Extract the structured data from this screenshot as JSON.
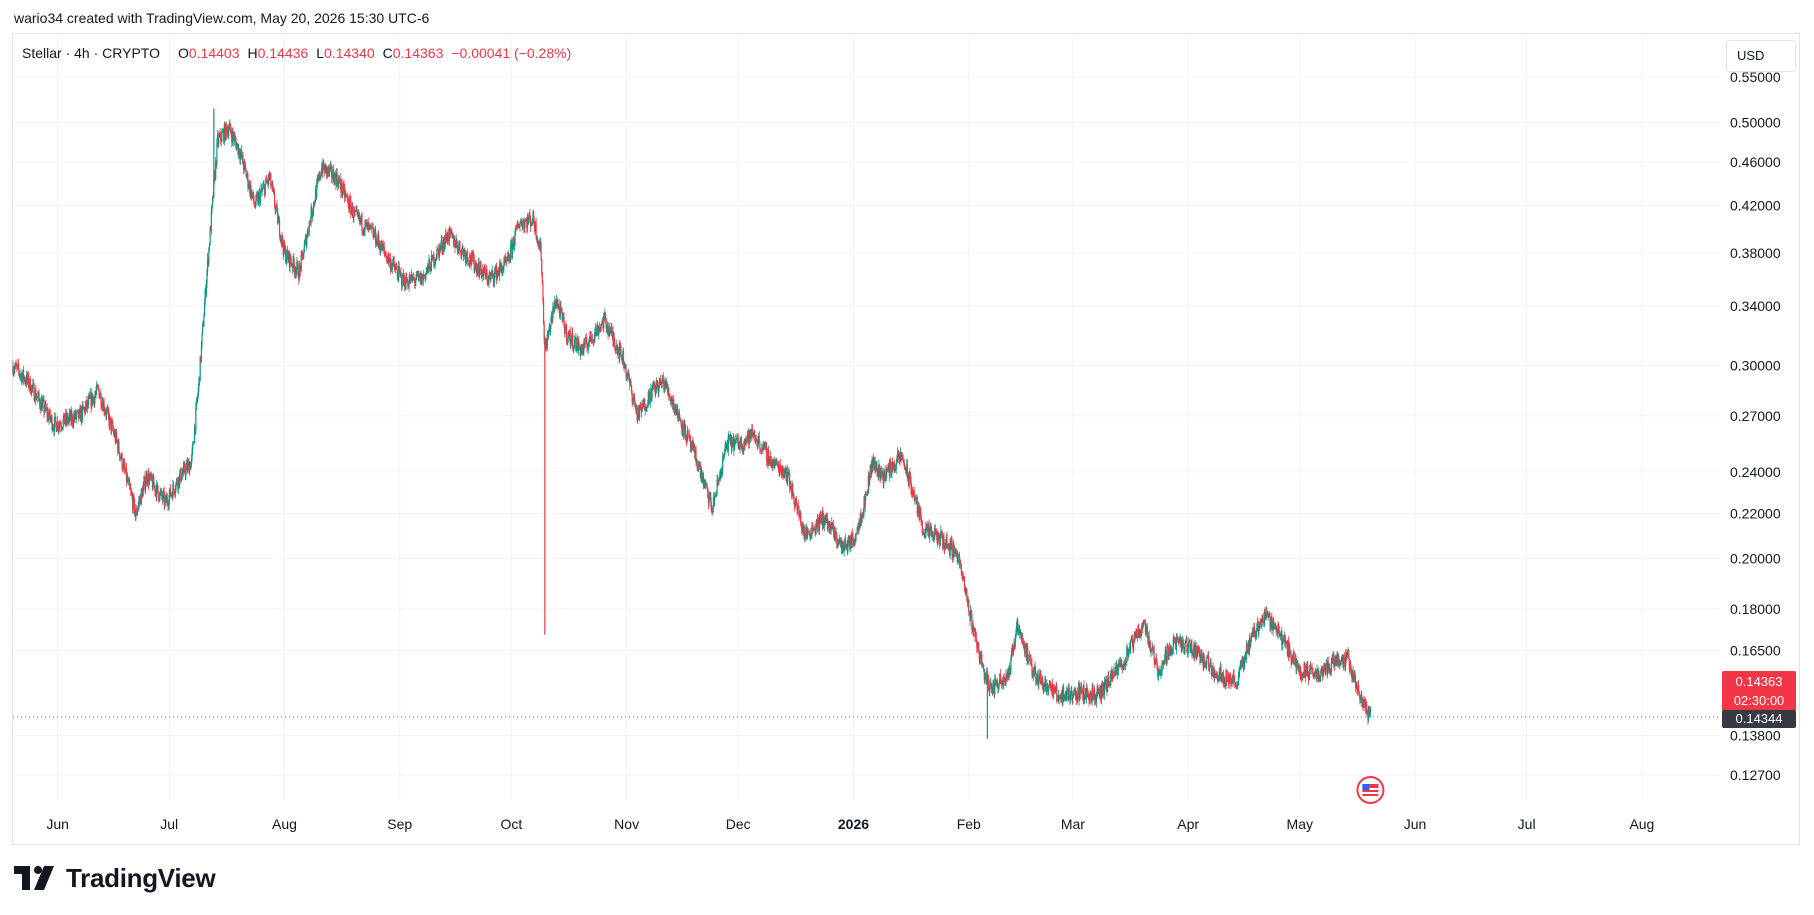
{
  "caption": "wario34 created with TradingView.com, May 20, 2026 15:30 UTC-6",
  "brand": {
    "name": "TradingView",
    "logo_icon": "tradingview-logo-icon"
  },
  "legend": {
    "symbol": "Stellar · 4h · CRYPTO",
    "open_label": "O",
    "open": "0.14403",
    "high_label": "H",
    "high": "0.14436",
    "low_label": "L",
    "low": "0.14340",
    "close_label": "C",
    "close": "0.14363",
    "change": "−0.00041 (−0.28%)"
  },
  "currency": "USD",
  "price_tag": {
    "value": "0.14363",
    "countdown": "02:30:00",
    "color": "#f23645"
  },
  "ref_tag": {
    "value": "0.14344",
    "color": "#363a45"
  },
  "colors": {
    "up": "#089981",
    "down": "#f23645",
    "grid": "#f0f3fa",
    "text": "#131722"
  },
  "event_icon": "us-flag-economic-event-icon",
  "chart_data": {
    "type": "candlestick",
    "interval": "4h",
    "y_scale": "log",
    "ylim": [
      0.1205,
      0.5652
    ],
    "y_ticks": [
      "0.55000",
      "0.50000",
      "0.46000",
      "0.42000",
      "0.38000",
      "0.34000",
      "0.30000",
      "0.27000",
      "0.24000",
      "0.22000",
      "0.20000",
      "0.18000",
      "0.16500",
      "0.13800",
      "0.12700"
    ],
    "x_ticks": [
      "Jun",
      "Jul",
      "Aug",
      "Sep",
      "Oct",
      "Nov",
      "Dec",
      "2026",
      "Feb",
      "Mar",
      "Apr",
      "May",
      "Jun",
      "Jul",
      "Aug"
    ],
    "x_range": [
      "2025-05-20",
      "2026-08-22"
    ],
    "path": [
      [
        "2025-05-20",
        0.3
      ],
      [
        "2025-05-24",
        0.29
      ],
      [
        "2025-05-31",
        0.265
      ],
      [
        "2025-06-07",
        0.27
      ],
      [
        "2025-06-12",
        0.285
      ],
      [
        "2025-06-17",
        0.255
      ],
      [
        "2025-06-22",
        0.22
      ],
      [
        "2025-06-25",
        0.238
      ],
      [
        "2025-06-30",
        0.225
      ],
      [
        "2025-07-04",
        0.238
      ],
      [
        "2025-07-07",
        0.245
      ],
      [
        "2025-07-09",
        0.29
      ],
      [
        "2025-07-11",
        0.36
      ],
      [
        "2025-07-14",
        0.48
      ],
      [
        "2025-07-17",
        0.495
      ],
      [
        "2025-07-20",
        0.47
      ],
      [
        "2025-07-24",
        0.42
      ],
      [
        "2025-07-28",
        0.445
      ],
      [
        "2025-08-01",
        0.38
      ],
      [
        "2025-08-05",
        0.365
      ],
      [
        "2025-08-08",
        0.41
      ],
      [
        "2025-08-11",
        0.455
      ],
      [
        "2025-08-15",
        0.445
      ],
      [
        "2025-08-20",
        0.41
      ],
      [
        "2025-08-25",
        0.395
      ],
      [
        "2025-08-29",
        0.375
      ],
      [
        "2025-09-02",
        0.358
      ],
      [
        "2025-09-07",
        0.36
      ],
      [
        "2025-09-14",
        0.395
      ],
      [
        "2025-09-20",
        0.375
      ],
      [
        "2025-09-25",
        0.36
      ],
      [
        "2025-09-30",
        0.372
      ],
      [
        "2025-10-03",
        0.405
      ],
      [
        "2025-10-07",
        0.408
      ],
      [
        "2025-10-09",
        0.38
      ],
      [
        "2025-10-10",
        0.31
      ],
      [
        "2025-10-13",
        0.345
      ],
      [
        "2025-10-16",
        0.32
      ],
      [
        "2025-10-20",
        0.31
      ],
      [
        "2025-10-26",
        0.33
      ],
      [
        "2025-10-31",
        0.305
      ],
      [
        "2025-11-04",
        0.27
      ],
      [
        "2025-11-08",
        0.285
      ],
      [
        "2025-11-11",
        0.29
      ],
      [
        "2025-11-15",
        0.27
      ],
      [
        "2025-11-20",
        0.245
      ],
      [
        "2025-11-24",
        0.222
      ],
      [
        "2025-11-28",
        0.255
      ],
      [
        "2025-12-02",
        0.255
      ],
      [
        "2025-12-05",
        0.26
      ],
      [
        "2025-12-10",
        0.245
      ],
      [
        "2025-12-14",
        0.24
      ],
      [
        "2025-12-19",
        0.21
      ],
      [
        "2025-12-24",
        0.218
      ],
      [
        "2025-12-29",
        0.205
      ],
      [
        "2026-01-01",
        0.208
      ],
      [
        "2026-01-04",
        0.225
      ],
      [
        "2026-01-06",
        0.245
      ],
      [
        "2026-01-09",
        0.238
      ],
      [
        "2026-01-14",
        0.248
      ],
      [
        "2026-01-17",
        0.23
      ],
      [
        "2026-01-20",
        0.212
      ],
      [
        "2026-01-25",
        0.208
      ],
      [
        "2026-01-29",
        0.202
      ],
      [
        "2026-02-01",
        0.18
      ],
      [
        "2026-02-05",
        0.158
      ],
      [
        "2026-02-07",
        0.152
      ],
      [
        "2026-02-12",
        0.158
      ],
      [
        "2026-02-14",
        0.175
      ],
      [
        "2026-02-18",
        0.158
      ],
      [
        "2026-02-25",
        0.15
      ],
      [
        "2026-03-03",
        0.151
      ],
      [
        "2026-03-08",
        0.15
      ],
      [
        "2026-03-15",
        0.162
      ],
      [
        "2026-03-20",
        0.175
      ],
      [
        "2026-03-24",
        0.158
      ],
      [
        "2026-03-28",
        0.168
      ],
      [
        "2026-04-03",
        0.165
      ],
      [
        "2026-04-08",
        0.158
      ],
      [
        "2026-04-14",
        0.154
      ],
      [
        "2026-04-18",
        0.17
      ],
      [
        "2026-04-22",
        0.178
      ],
      [
        "2026-04-26",
        0.17
      ],
      [
        "2026-05-01",
        0.158
      ],
      [
        "2026-05-06",
        0.157
      ],
      [
        "2026-05-11",
        0.162
      ],
      [
        "2026-05-14",
        0.162
      ],
      [
        "2026-05-17",
        0.15
      ],
      [
        "2026-05-20",
        0.1436
      ]
    ],
    "spikes": [
      {
        "date": "2025-10-10",
        "low": 0.1705
      },
      {
        "date": "2026-02-06",
        "low": 0.137
      },
      {
        "date": "2025-06-22",
        "low": 0.2165
      },
      {
        "date": "2025-07-13",
        "high": 0.515
      }
    ],
    "last": {
      "open": 0.14403,
      "high": 0.14436,
      "low": 0.1434,
      "close": 0.14363
    },
    "reference_line": 0.14344
  }
}
